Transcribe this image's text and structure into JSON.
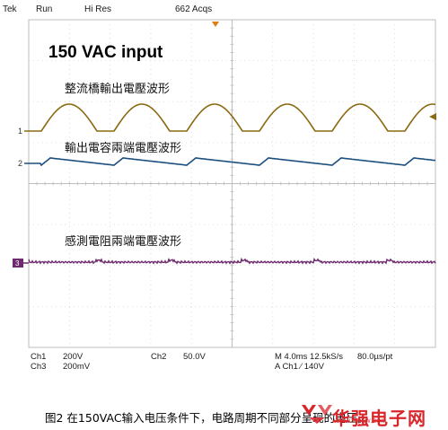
{
  "header": {
    "brand": "Tek",
    "state": "Run",
    "mode": "Hi Res",
    "acqs": "662 Acqs"
  },
  "plot_title": "150 VAC input",
  "channels": [
    {
      "marker": "1",
      "label": "整流橋輸出電壓波形",
      "color": "#8a6a12"
    },
    {
      "marker": "2",
      "label": "輸出電容兩端電壓波形",
      "color": "#1c4e7e"
    },
    {
      "marker": "3",
      "label": "感測電阻兩端電壓波形",
      "color": "#6e2a6e"
    }
  ],
  "footer": {
    "ch1_name": "Ch1",
    "ch1_scale": "200V",
    "ch2_name": "Ch2",
    "ch2_scale": "50.0V",
    "ch3_name": "Ch3",
    "ch3_scale": "200mV",
    "timebase": "M 4.0ms 12.5kS/s",
    "resolution": "80.0µs/pt",
    "trigger": "A  Ch1  ∕  140V"
  },
  "caption": "图2 在150VAC输入电压条件下，电路周期不同部分呈现的电压。",
  "watermark": {
    "text": "华强电子网",
    "url": "WWW.HQEW.COM"
  }
}
